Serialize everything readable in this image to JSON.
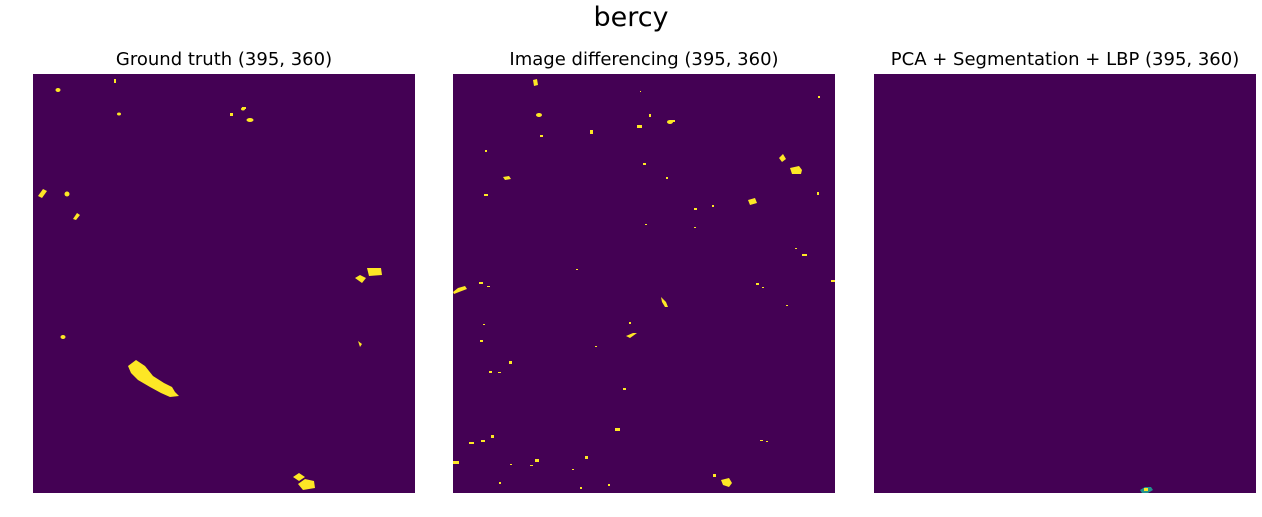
{
  "figure": {
    "title": "bercy"
  },
  "panels": [
    {
      "title": "Ground truth (395, 360)"
    },
    {
      "title": "Image differencing (395, 360)"
    },
    {
      "title": "PCA + Segmentation + LBP (395, 360)"
    }
  ],
  "colors": {
    "background": "#440154",
    "change": "#fde725",
    "mid": "#21918c"
  }
}
